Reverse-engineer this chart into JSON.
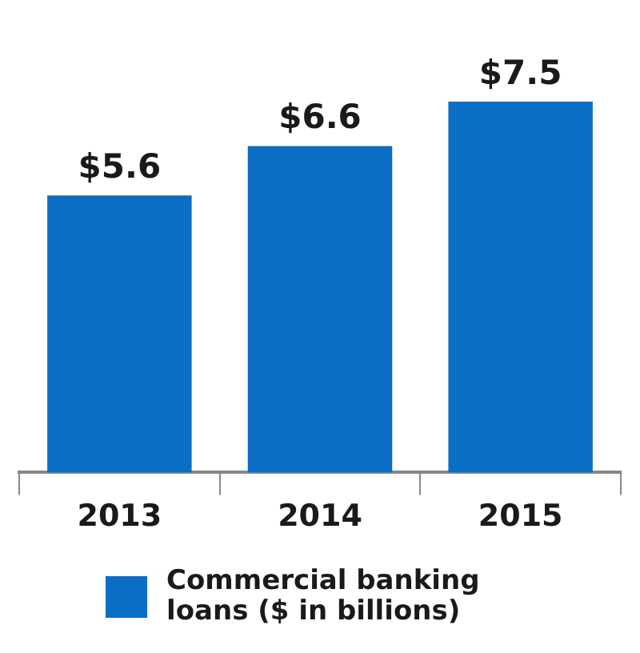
{
  "chart_data": {
    "type": "bar",
    "categories": [
      "2013",
      "2014",
      "2015"
    ],
    "series": [
      {
        "name": "Commercial banking loans ($ in billions)",
        "color": "#0a6ec4",
        "values": [
          5.6,
          6.6,
          7.5
        ],
        "value_labels": [
          "$5.6",
          "$6.6",
          "$7.5"
        ]
      }
    ],
    "grid": false,
    "legend": "bottom"
  }
}
